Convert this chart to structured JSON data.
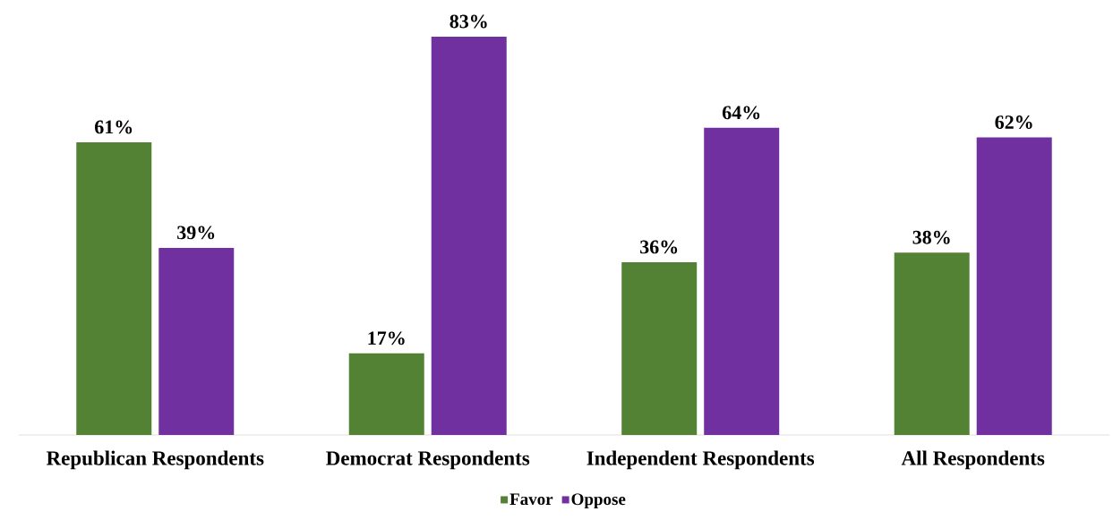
{
  "chart_data": {
    "type": "bar",
    "categories": [
      "Republican Respondents",
      "Democrat Respondents",
      "Independent Respondents",
      "All Respondents"
    ],
    "series": [
      {
        "name": "Favor",
        "color": "#548235",
        "values": [
          61,
          17,
          36,
          38
        ],
        "value_labels": [
          "61%",
          "17%",
          "36%",
          "38%"
        ]
      },
      {
        "name": "Oppose",
        "color": "#7030a0",
        "values": [
          39,
          83,
          64,
          62
        ],
        "value_labels": [
          "39%",
          "83%",
          "64%",
          "62%"
        ]
      }
    ],
    "legend": "bottom"
  }
}
